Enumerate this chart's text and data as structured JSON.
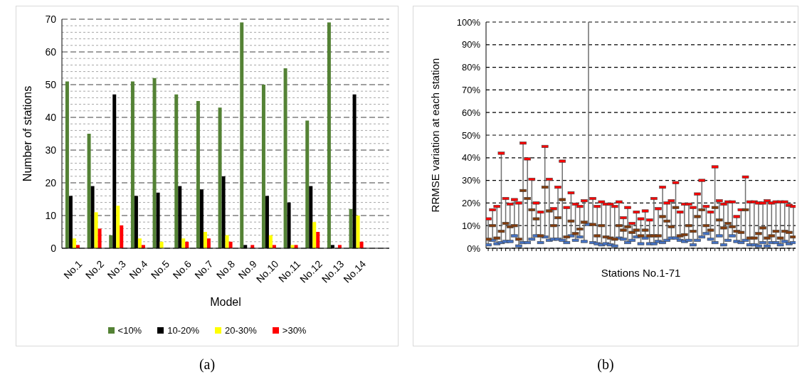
{
  "chart_data": [
    {
      "type": "bar",
      "categories": [
        "No.1",
        "No.2",
        "No.3",
        "No.4",
        "No.5",
        "No.6",
        "No.7",
        "No.8",
        "No.9",
        "No.10",
        "No.11",
        "No.12",
        "No.13",
        "No.14",
        null
      ],
      "series": [
        {
          "name": "<10%",
          "color": "#548235",
          "values": [
            51,
            35,
            4,
            51,
            52,
            47,
            45,
            43,
            69,
            50,
            55,
            39,
            69,
            12,
            null
          ]
        },
        {
          "name": "10-20%",
          "color": "#000000",
          "values": [
            16,
            19,
            47,
            16,
            17,
            19,
            18,
            22,
            1,
            16,
            14,
            19,
            1,
            47,
            null
          ]
        },
        {
          "name": "20-30%",
          "color": "#ffff00",
          "values": [
            3,
            11,
            13,
            3,
            2,
            3,
            5,
            4,
            0,
            4,
            1,
            8,
            0,
            10,
            null
          ]
        },
        {
          "name": ">30%",
          "color": "#ff0000",
          "values": [
            1,
            6,
            7,
            1,
            0,
            2,
            3,
            2,
            1,
            1,
            1,
            5,
            1,
            2,
            null
          ]
        }
      ],
      "xlabel": "Model",
      "ylabel": "Number of stations",
      "ylim": [
        0,
        70
      ],
      "yticks": [
        0,
        {
          "value": 2,
          "label": null
        },
        {
          "value": 4,
          "label": null
        },
        {
          "value": 6,
          "label": null
        },
        {
          "value": 8,
          "label": null
        },
        10,
        {
          "value": 12,
          "label": null
        },
        {
          "value": 14,
          "label": null
        },
        {
          "value": 16,
          "label": null
        },
        {
          "value": 18,
          "label": null
        },
        20,
        {
          "value": 22,
          "label": null
        },
        {
          "value": 24,
          "label": null
        },
        {
          "value": 26,
          "label": null
        },
        {
          "value": 28,
          "label": null
        },
        30,
        {
          "value": 32,
          "label": null
        },
        {
          "value": 34,
          "label": null
        },
        {
          "value": 36,
          "label": null
        },
        {
          "value": 38,
          "label": null
        },
        40,
        {
          "value": 42,
          "label": null
        },
        {
          "value": 44,
          "label": null
        },
        {
          "value": 46,
          "label": null
        },
        {
          "value": 48,
          "label": null
        },
        50,
        {
          "value": 52,
          "label": null
        },
        {
          "value": 54,
          "label": null
        },
        {
          "value": 56,
          "label": null
        },
        {
          "value": 58,
          "label": null
        },
        60,
        {
          "value": 62,
          "label": null
        },
        {
          "value": 64,
          "label": null
        },
        {
          "value": 66,
          "label": null
        },
        {
          "value": 68,
          "label": null
        },
        70
      ],
      "grid": "y",
      "legend": "bottom",
      "annotations": [
        "(a)"
      ]
    },
    {
      "type": "scatter",
      "categories": [
        null,
        null,
        null,
        null,
        null,
        null,
        null,
        null,
        null,
        null,
        null,
        null,
        null,
        null,
        null,
        null,
        null,
        null,
        null,
        null,
        null,
        null,
        null,
        null,
        null,
        null,
        null,
        null,
        null,
        null,
        null,
        null,
        null,
        null,
        null,
        null,
        null,
        null,
        null,
        null,
        null,
        null,
        null,
        null,
        null,
        null,
        null,
        null,
        null,
        null,
        null,
        null,
        null,
        null,
        null,
        null,
        null,
        null,
        null,
        null,
        null,
        null,
        null,
        null,
        null,
        null,
        null,
        null,
        null,
        null,
        null
      ],
      "series": [
        {
          "color": "#ff0000",
          "values": [
            13,
            17,
            18.5,
            42,
            22,
            19.5,
            21.5,
            20,
            46.5,
            39.5,
            30.5,
            20,
            16,
            45,
            30.5,
            17.5,
            27,
            38.5,
            18,
            24.5,
            19.5,
            18.5,
            21,
            null,
            22,
            18.5,
            20.5,
            19.5,
            19.5,
            18.5,
            20.5,
            13.5,
            18,
            11,
            16,
            13,
            16.5,
            12.5,
            22,
            17.5,
            27,
            20,
            21,
            29,
            16,
            19.5,
            19.5,
            18,
            24,
            30,
            18.5,
            16,
            36,
            21,
            19.5,
            20.5,
            20.5,
            14,
            17,
            31.5,
            20.5,
            20.5,
            20,
            20,
            21,
            20,
            20.5,
            20.5,
            20.5,
            19,
            18.5
          ]
        },
        {
          "color": "#843c0c",
          "values": [
            4,
            10,
            4.5,
            7.5,
            11,
            9.5,
            10,
            4,
            25.5,
            22,
            17,
            13,
            5.5,
            27,
            16.5,
            10,
            13.5,
            21.5,
            5,
            12,
            6.5,
            8.5,
            11.5,
            null,
            10.5,
            5.5,
            10,
            5,
            4.5,
            4,
            10,
            8,
            9.5,
            7,
            8,
            5.5,
            8,
            5.5,
            5.5,
            5.5,
            14,
            12,
            9.5,
            18,
            5.5,
            6,
            10,
            7.5,
            14,
            17,
            10,
            8,
            18,
            12.5,
            9,
            11,
            9.5,
            7.5,
            7,
            17,
            4.5,
            4.5,
            6.5,
            9,
            4.5,
            5.5,
            7.5,
            4.5,
            7.5,
            7,
            5
          ]
        },
        {
          "color": "#4472c4",
          "values": [
            1.5,
            3.5,
            2,
            2.5,
            3,
            3,
            5.5,
            1,
            2.5,
            2.5,
            4,
            5.5,
            2.5,
            5,
            3.5,
            4,
            4,
            3.5,
            2.5,
            5.5,
            3.5,
            5,
            3,
            10.5,
            2.5,
            2,
            1.5,
            2,
            1.5,
            1,
            4.5,
            4,
            2.5,
            3.5,
            5,
            2,
            4.5,
            2,
            2,
            3,
            2.5,
            3.5,
            4.5,
            4.5,
            3.5,
            3,
            3.5,
            1.5,
            3.5,
            5,
            6.5,
            4,
            2.5,
            5.5,
            1.5,
            3.5,
            5.5,
            3,
            2.5,
            3.5,
            1.5,
            1.5,
            1,
            2.5,
            1,
            2.5,
            2.5,
            1.5,
            3,
            2,
            2.5
          ],
          "errors": [
            null,
            null,
            null,
            null,
            null,
            null,
            null,
            null,
            null,
            null,
            null,
            null,
            null,
            null,
            null,
            null,
            null,
            null,
            null,
            null,
            null,
            null,
            null,
            [
              10.5,
              100
            ],
            null,
            null,
            null,
            null,
            null,
            null,
            null,
            null,
            null,
            null,
            null,
            null,
            null,
            null,
            null,
            null,
            null,
            null,
            null,
            null,
            null,
            null,
            null,
            null,
            null,
            null,
            null,
            null,
            null,
            null,
            null,
            null,
            null,
            null,
            null,
            null,
            null,
            null,
            null,
            null,
            null,
            null,
            null,
            null,
            null,
            null,
            null
          ]
        }
      ],
      "xlabel": "Stations No.1-71",
      "ylabel": "RRMSE variation at each station",
      "ylim": [
        0,
        100
      ],
      "yticks": [
        {
          "value": 0,
          "label": "0%"
        },
        {
          "value": 10,
          "label": "10%"
        },
        {
          "value": 20,
          "label": "20%"
        },
        {
          "value": 30,
          "label": "30%"
        },
        {
          "value": 40,
          "label": "40%"
        },
        {
          "value": 50,
          "label": "50%"
        },
        {
          "value": 60,
          "label": "60%"
        },
        {
          "value": 70,
          "label": "70%"
        },
        {
          "value": 80,
          "label": "80%"
        },
        {
          "value": 90,
          "label": "90%"
        },
        {
          "value": 100,
          "label": "100%"
        }
      ],
      "grid": "y",
      "marker": "square",
      "annotations": [
        "(b)"
      ]
    }
  ]
}
